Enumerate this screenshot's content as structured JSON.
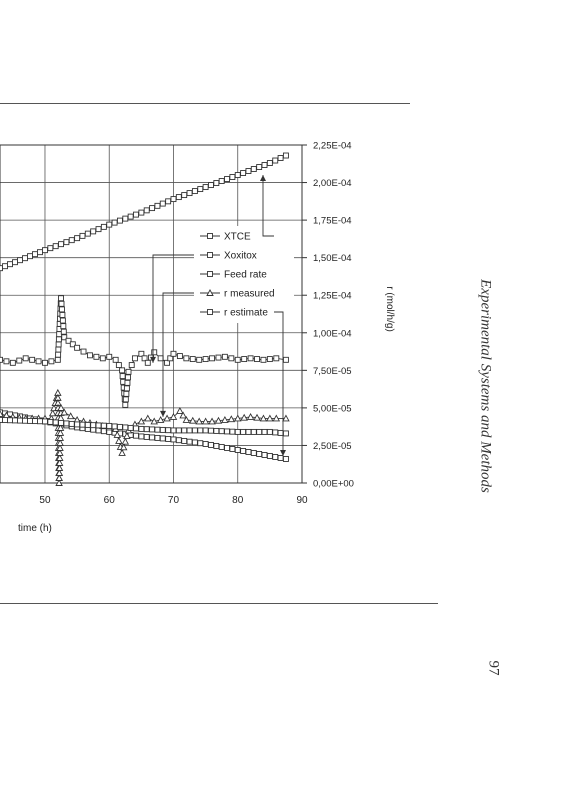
{
  "page": {
    "side_title": "Experimental Systems and Methods",
    "page_number": "97"
  },
  "chart_data": {
    "type": "line",
    "xlabel": "time (h)",
    "ylabel": "r (mol/h/g)",
    "x_ticks": [
      "50",
      "60",
      "70",
      "80",
      "90"
    ],
    "y_ticks": [
      "0,00E+00",
      "2,50E-05",
      "5,00E-05",
      "7,50E-05",
      "1,00E-04",
      "1,25E-04",
      "1,50E-04",
      "1,75E-04",
      "2,00E-04",
      "2,25E-04"
    ],
    "xlim": [
      43,
      90
    ],
    "ylim": [
      0,
      0.000225
    ],
    "grid": true,
    "legend": {
      "position": "center-right",
      "entries": [
        "XTCE",
        "Xoxitox",
        "Feed rate",
        "r measured",
        "r estimate"
      ]
    },
    "series": [
      {
        "name": "XTCE",
        "marker": "square",
        "x": [
          43,
          50,
          55,
          60,
          65,
          70,
          75,
          80,
          85,
          87.5
        ],
        "y": [
          0.000143,
          0.000155,
          0.000163,
          0.000172,
          0.00018,
          0.000189,
          0.000197,
          0.000205,
          0.000213,
          0.000218
        ]
      },
      {
        "name": "Xoxitox",
        "marker": "square",
        "x": [
          43,
          50,
          55,
          60,
          65,
          70,
          75,
          80,
          85,
          87.5
        ],
        "y": [
          4.7e-05,
          4.1e-05,
          3.7e-05,
          3.4e-05,
          3.1e-05,
          2.9e-05,
          2.6e-05,
          2.2e-05,
          1.8e-05,
          1.6e-05
        ]
      },
      {
        "name": "Feed rate",
        "marker": "square",
        "x": [
          43,
          45,
          47,
          49,
          50,
          52,
          52.5,
          53,
          55,
          57,
          59,
          60,
          61,
          62,
          62.5,
          63,
          64,
          65,
          66,
          67,
          68,
          69,
          70,
          72,
          74,
          76,
          78,
          80,
          82,
          84,
          86,
          87.5
        ],
        "y": [
          8.2e-05,
          8e-05,
          8.3e-05,
          8.1e-05,
          8e-05,
          8.2e-05,
          0.000123,
          9.7e-05,
          9e-05,
          8.5e-05,
          8.3e-05,
          8.4e-05,
          8.2e-05,
          7.5e-05,
          5.2e-05,
          7.4e-05,
          8.3e-05,
          8.6e-05,
          8e-05,
          8.7e-05,
          8.3e-05,
          8e-05,
          8.6e-05,
          8.3e-05,
          8.2e-05,
          8.3e-05,
          8.4e-05,
          8.2e-05,
          8.3e-05,
          8.2e-05,
          8.3e-05,
          8.2e-05
        ]
      },
      {
        "name": "r measured",
        "marker": "triangle",
        "x": [
          43,
          45,
          47,
          49,
          51,
          52,
          52.2,
          52.5,
          53,
          55,
          57,
          59,
          61,
          62,
          63,
          64,
          65,
          66,
          67,
          68,
          70,
          71,
          72,
          74,
          76,
          78,
          80,
          82,
          84,
          86,
          87.5
        ],
        "y": [
          4.6e-05,
          4.4e-05,
          4.3e-05,
          4.3e-05,
          4.3e-05,
          6e-05,
          0.0,
          5e-05,
          4.7e-05,
          4.2e-05,
          4e-05,
          3.8e-05,
          3.6e-05,
          2e-05,
          3.5e-05,
          3.9e-05,
          4.1e-05,
          4.3e-05,
          4.1e-05,
          4.2e-05,
          4.4e-05,
          4.8e-05,
          4.2e-05,
          4.1e-05,
          4.1e-05,
          4.2e-05,
          4.3e-05,
          4.4e-05,
          4.3e-05,
          4.3e-05,
          4.3e-05
        ]
      },
      {
        "name": "r estimate",
        "marker": "square",
        "x": [
          43,
          50,
          55,
          60,
          65,
          70,
          75,
          80,
          85,
          87.5
        ],
        "y": [
          4.2e-05,
          4.1e-05,
          3.9e-05,
          3.8e-05,
          3.6e-05,
          3.5e-05,
          3.5e-05,
          3.4e-05,
          3.4e-05,
          3.3e-05
        ]
      }
    ]
  }
}
